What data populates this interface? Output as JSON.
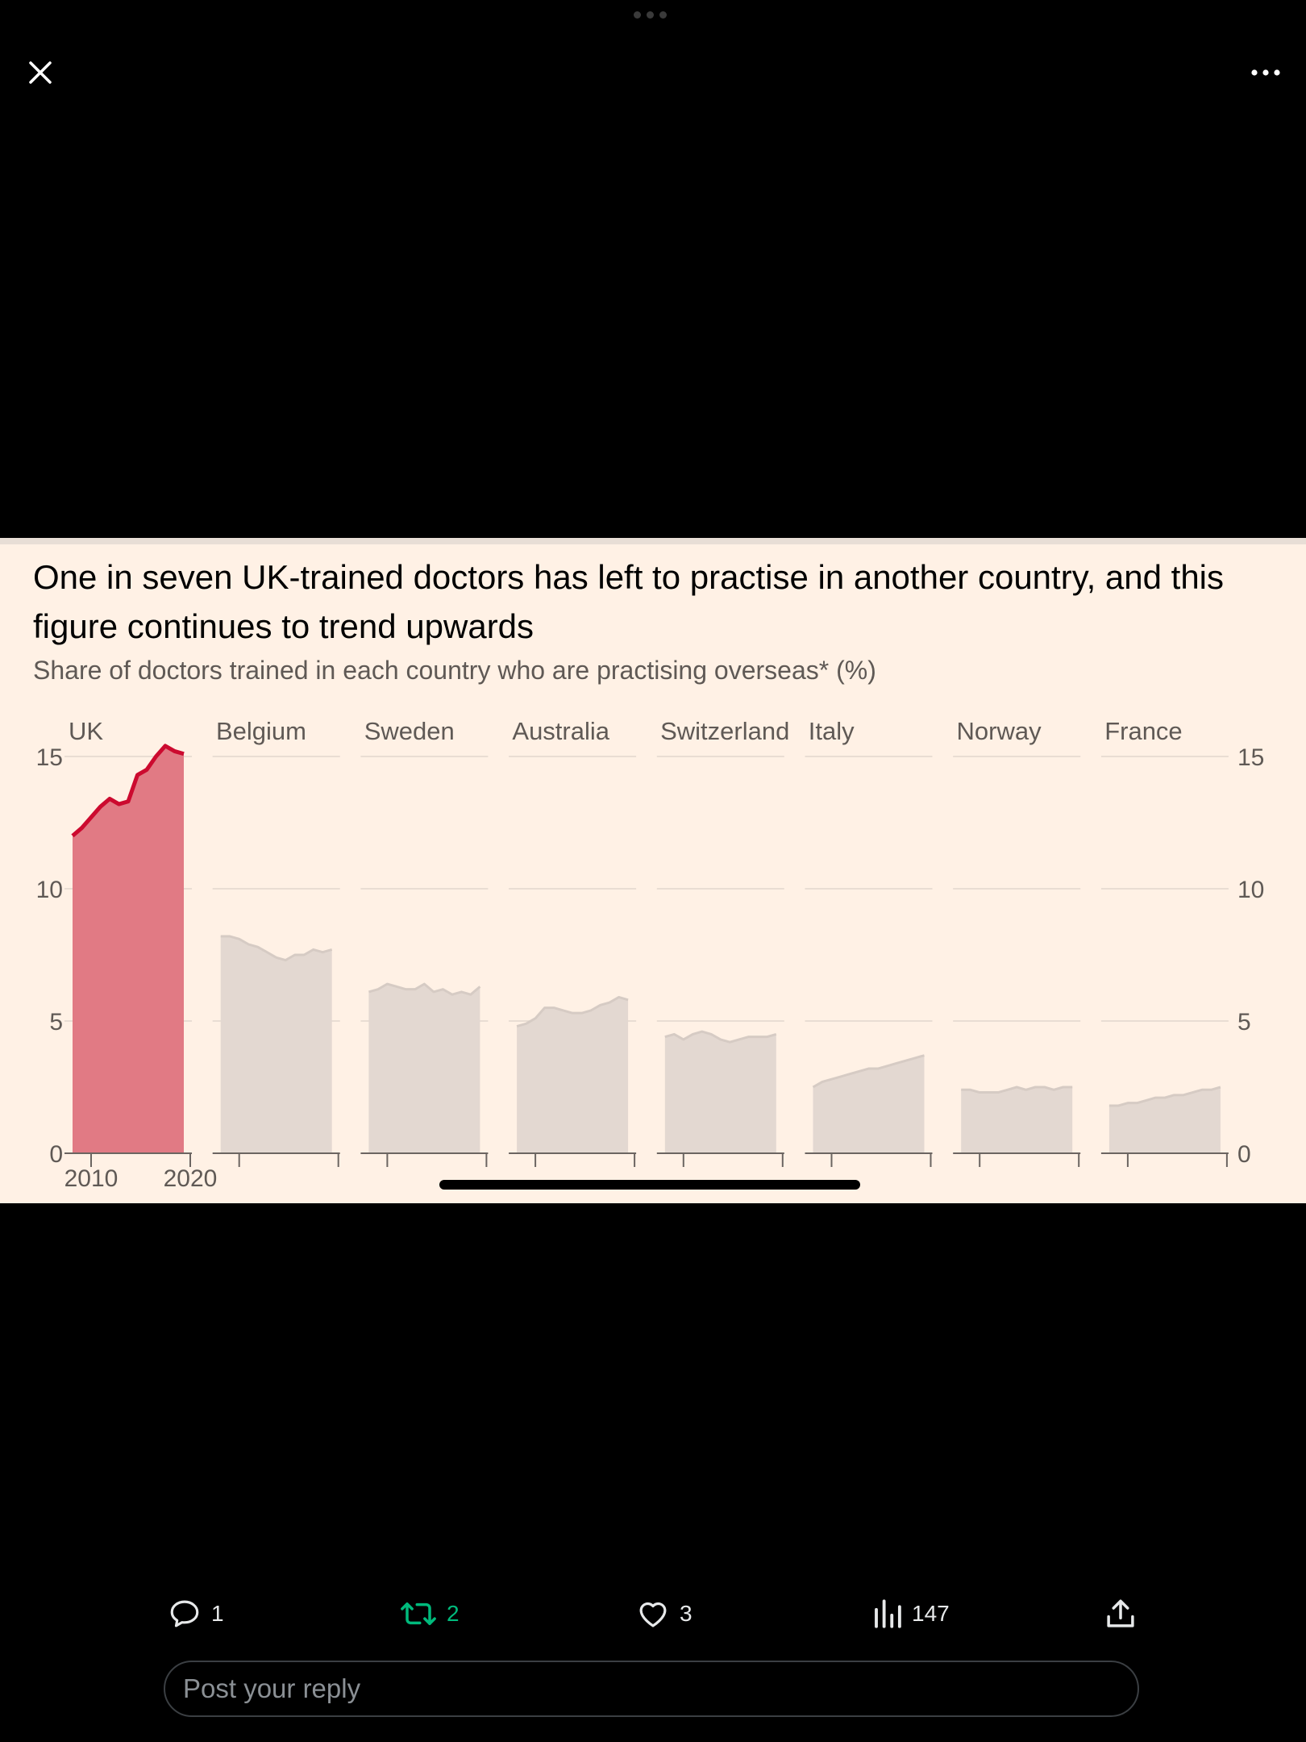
{
  "viewer": {
    "close_icon": "close-icon",
    "more_icon": "more-horizontal-icon"
  },
  "chart_data": {
    "type": "area",
    "title": "One in seven UK-trained doctors has left to practise in another country, and this figure continues to trend upwards",
    "subtitle": "Share of doctors trained in each country who are practising overseas* (%)",
    "x_tick_labels": [
      "2010",
      "2020"
    ],
    "ylim": [
      0,
      15
    ],
    "y_ticks": [
      0,
      5,
      10,
      15
    ],
    "grid": true,
    "highlight_color": "#cc0a2f",
    "highlight_fill": "#e17a84",
    "muted_fill": "#e3d8d1",
    "muted_line": "#d6cbc4",
    "series": [
      {
        "name": "UK",
        "highlight": true,
        "x": [
          2008,
          2009,
          2010,
          2011,
          2012,
          2013,
          2014,
          2015,
          2016,
          2017,
          2018,
          2019,
          2020
        ],
        "values": [
          12.0,
          12.3,
          12.7,
          13.1,
          13.4,
          13.2,
          13.3,
          14.3,
          14.5,
          15.0,
          15.4,
          15.2,
          15.1
        ]
      },
      {
        "name": "Belgium",
        "x": [
          2008,
          2009,
          2010,
          2011,
          2012,
          2013,
          2014,
          2015,
          2016,
          2017,
          2018,
          2019,
          2020
        ],
        "values": [
          8.2,
          8.2,
          8.1,
          7.9,
          7.8,
          7.6,
          7.4,
          7.3,
          7.5,
          7.5,
          7.7,
          7.6,
          7.7
        ]
      },
      {
        "name": "Sweden",
        "x": [
          2008,
          2009,
          2010,
          2011,
          2012,
          2013,
          2014,
          2015,
          2016,
          2017,
          2018,
          2019,
          2020
        ],
        "values": [
          6.1,
          6.2,
          6.4,
          6.3,
          6.2,
          6.2,
          6.4,
          6.1,
          6.2,
          6.0,
          6.1,
          6.0,
          6.3
        ]
      },
      {
        "name": "Australia",
        "x": [
          2008,
          2009,
          2010,
          2011,
          2012,
          2013,
          2014,
          2015,
          2016,
          2017,
          2018,
          2019,
          2020
        ],
        "values": [
          4.8,
          4.9,
          5.1,
          5.5,
          5.5,
          5.4,
          5.3,
          5.3,
          5.4,
          5.6,
          5.7,
          5.9,
          5.8
        ]
      },
      {
        "name": "Switzerland",
        "x": [
          2008,
          2009,
          2010,
          2011,
          2012,
          2013,
          2014,
          2015,
          2016,
          2017,
          2018,
          2019,
          2020
        ],
        "values": [
          4.4,
          4.5,
          4.3,
          4.5,
          4.6,
          4.5,
          4.3,
          4.2,
          4.3,
          4.4,
          4.4,
          4.4,
          4.5
        ]
      },
      {
        "name": "Italy",
        "x": [
          2008,
          2009,
          2010,
          2011,
          2012,
          2013,
          2014,
          2015,
          2016,
          2017,
          2018,
          2019,
          2020
        ],
        "values": [
          2.5,
          2.7,
          2.8,
          2.9,
          3.0,
          3.1,
          3.2,
          3.2,
          3.3,
          3.4,
          3.5,
          3.6,
          3.7
        ]
      },
      {
        "name": "Norway",
        "x": [
          2008,
          2009,
          2010,
          2011,
          2012,
          2013,
          2014,
          2015,
          2016,
          2017,
          2018,
          2019,
          2020
        ],
        "values": [
          2.4,
          2.4,
          2.3,
          2.3,
          2.3,
          2.4,
          2.5,
          2.4,
          2.5,
          2.5,
          2.4,
          2.5,
          2.5
        ]
      },
      {
        "name": "France",
        "x": [
          2008,
          2009,
          2010,
          2011,
          2012,
          2013,
          2014,
          2015,
          2016,
          2017,
          2018,
          2019,
          2020
        ],
        "values": [
          1.8,
          1.8,
          1.9,
          1.9,
          2.0,
          2.1,
          2.1,
          2.2,
          2.2,
          2.3,
          2.4,
          2.4,
          2.5
        ]
      }
    ]
  },
  "actions": {
    "reply": {
      "icon": "reply-icon",
      "count": "1"
    },
    "retweet": {
      "icon": "retweet-icon",
      "count": "2",
      "color": "#00ba7c"
    },
    "like": {
      "icon": "heart-icon",
      "count": "3"
    },
    "views": {
      "icon": "views-icon",
      "count": "147"
    },
    "share": {
      "icon": "share-icon"
    }
  },
  "reply_box": {
    "placeholder": "Post your reply",
    "value": ""
  }
}
